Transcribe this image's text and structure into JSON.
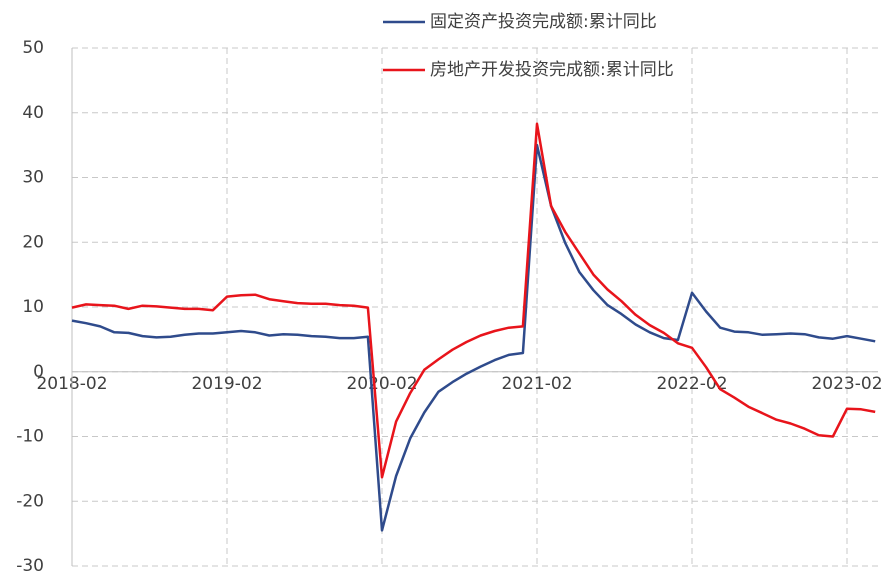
{
  "chart_data": {
    "type": "line",
    "categories": [
      "2018-02",
      null,
      null,
      null,
      null,
      null,
      null,
      null,
      null,
      null,
      null,
      "2019-02",
      null,
      null,
      null,
      null,
      null,
      null,
      null,
      null,
      null,
      null,
      "2020-02",
      null,
      null,
      null,
      null,
      null,
      null,
      null,
      null,
      null,
      null,
      "2021-02",
      null,
      null,
      null,
      null,
      null,
      null,
      null,
      null,
      null,
      null,
      "2022-02",
      null,
      null,
      null,
      null,
      null,
      null,
      null,
      null,
      null,
      null,
      "2023-02",
      null,
      null
    ],
    "series": [
      {
        "name": "固定资产投资完成额:累计同比",
        "color": "#2f4b8c",
        "values": [
          7.9,
          7.5,
          7.0,
          6.1,
          6.0,
          5.5,
          5.3,
          5.4,
          5.7,
          5.9,
          5.9,
          6.1,
          6.3,
          6.1,
          5.6,
          5.8,
          5.7,
          5.5,
          5.4,
          5.2,
          5.2,
          5.4,
          -24.5,
          -16.1,
          -10.3,
          -6.3,
          -3.1,
          -1.6,
          -0.3,
          0.8,
          1.8,
          2.6,
          2.9,
          35.0,
          25.6,
          19.9,
          15.4,
          12.6,
          10.3,
          8.9,
          7.3,
          6.1,
          5.2,
          4.9,
          12.2,
          9.3,
          6.8,
          6.2,
          6.1,
          5.7,
          5.8,
          5.9,
          5.8,
          5.3,
          5.1,
          5.5,
          5.1,
          4.7
        ]
      },
      {
        "name": "房地产开发投资完成额:累计同比",
        "color": "#e8141b",
        "values": [
          9.9,
          10.4,
          10.3,
          10.2,
          9.7,
          10.2,
          10.1,
          9.9,
          9.7,
          9.7,
          9.5,
          11.6,
          11.8,
          11.9,
          11.2,
          10.9,
          10.6,
          10.5,
          10.5,
          10.3,
          10.2,
          9.9,
          -16.3,
          -7.7,
          -3.3,
          0.3,
          1.9,
          3.4,
          4.6,
          5.6,
          6.3,
          6.8,
          7.0,
          38.3,
          25.6,
          21.6,
          18.3,
          15.0,
          12.7,
          10.9,
          8.8,
          7.2,
          6.0,
          4.4,
          3.7,
          0.7,
          -2.7,
          -4.0,
          -5.4,
          -6.4,
          -7.4,
          -8.0,
          -8.8,
          -9.8,
          -10.0,
          -5.7,
          -5.8,
          -6.2
        ]
      }
    ],
    "ylim": [
      -30,
      50
    ],
    "yticks": [
      -30,
      -20,
      -10,
      0,
      10,
      20,
      30,
      40,
      50
    ],
    "grid": true
  }
}
